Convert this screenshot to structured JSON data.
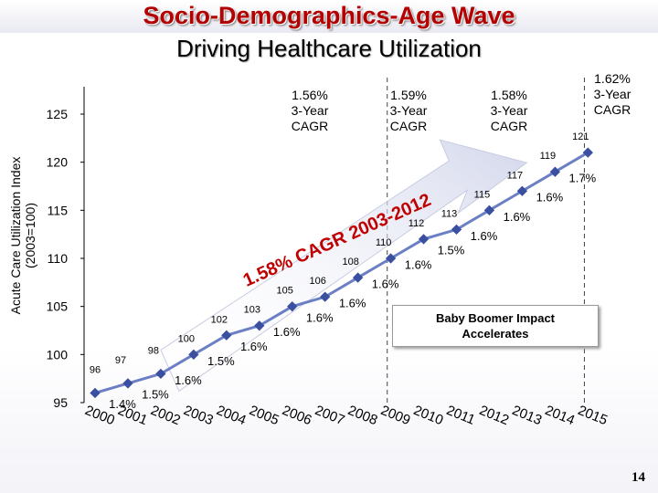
{
  "header": {
    "title": "Socio-Demographics-Age Wave",
    "subtitle": "Driving Healthcare Utilization"
  },
  "chart_data": {
    "type": "line",
    "ylabel_line1": "Acute Care Utilization Index",
    "ylabel_line2": "(2003=100)",
    "ylim": [
      95,
      125
    ],
    "yticks": [
      95,
      100,
      105,
      110,
      115,
      120,
      125
    ],
    "categories": [
      "2000",
      "2001",
      "2002",
      "2003",
      "2004",
      "2005",
      "2006",
      "2007",
      "2008",
      "2009",
      "2010",
      "2011",
      "2012",
      "2013",
      "2014",
      "2015"
    ],
    "values": [
      96,
      97,
      98,
      100,
      102,
      103,
      105,
      106,
      108,
      110,
      112,
      113,
      115,
      117,
      119,
      121
    ],
    "value_labels": [
      "96",
      "97",
      "98",
      "100",
      "102",
      "103",
      "105",
      "106",
      "108",
      "110",
      "112",
      "113",
      "115",
      "117",
      "119",
      "121"
    ],
    "growth_labels": [
      "1.4%",
      "1.5%",
      "1.6%",
      "1.5%",
      "1.6%",
      "1.6%",
      "1.6%",
      "1.6%",
      "1.6%",
      "1.6%",
      "1.5%",
      "1.6%",
      "1.6%",
      "1.6%",
      "1.7%"
    ],
    "trend_label": "1.58% CAGR 2003-2012",
    "cagr_boxes": [
      {
        "line1": "1.56%",
        "line2": "3-Year",
        "line3": "CAGR"
      },
      {
        "line1": "1.59%",
        "line2": "3-Year",
        "line3": "CAGR"
      },
      {
        "line1": "1.58%",
        "line2": "3-Year",
        "line3": "CAGR"
      },
      {
        "line1": "1.62%",
        "line2": "3-Year",
        "line3": "CAGR"
      }
    ],
    "callout": {
      "line1": "Baby Boomer Impact",
      "line2": "Accelerates"
    },
    "colors": {
      "line": "#6b7fc4",
      "marker": "#3a4fa0",
      "trend": "#c00000",
      "arrow": "#d9dcef"
    }
  },
  "footer": {
    "page_number": "14"
  }
}
